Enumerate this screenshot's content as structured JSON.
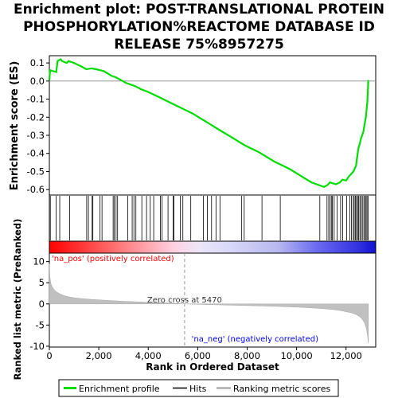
{
  "chart_data": {
    "type": "line",
    "title_lines": [
      "Enrichment plot: POST-TRANSLATIONAL PROTEIN",
      "PHOSPHORYLATION%REACTOME DATABASE ID",
      "RELEASE 75%8957275"
    ],
    "es_panel": {
      "ylabel": "Enrichment score (ES)",
      "ylim": [
        -0.63,
        0.14
      ],
      "yticks": [
        0.1,
        0.0,
        -0.1,
        -0.2,
        -0.3,
        -0.4,
        -0.5,
        -0.6
      ],
      "ytick_labels": [
        "0.1",
        "0.0",
        "-0.1",
        "-0.2",
        "-0.3",
        "-0.4",
        "-0.5",
        "-0.6"
      ],
      "xlim": [
        0,
        13200
      ],
      "series": [
        {
          "name": "Enrichment profile",
          "color": "#00dd00",
          "x": [
            0,
            30,
            280,
            330,
            450,
            520,
            700,
            780,
            1000,
            1300,
            1500,
            1700,
            1900,
            2050,
            2200,
            2500,
            2700,
            2900,
            3100,
            3300,
            3500,
            3700,
            4000,
            4300,
            4600,
            4900,
            5200,
            5500,
            5800,
            6100,
            6400,
            6700,
            7000,
            7300,
            7600,
            7900,
            8200,
            8500,
            8800,
            9100,
            9400,
            9700,
            10000,
            10300,
            10600,
            10900,
            11100,
            11250,
            11350,
            11450,
            11600,
            11750,
            11850,
            12000,
            12100,
            12200,
            12300,
            12400,
            12450,
            12500,
            12550,
            12600,
            12650,
            12700,
            12750,
            12800,
            12830,
            12860,
            12880,
            12900
          ],
          "y": [
            0.005,
            0.06,
            0.05,
            0.11,
            0.12,
            0.11,
            0.1,
            0.11,
            0.1,
            0.08,
            0.065,
            0.07,
            0.065,
            0.06,
            0.055,
            0.03,
            0.02,
            0.005,
            -0.01,
            -0.02,
            -0.03,
            -0.045,
            -0.06,
            -0.08,
            -0.1,
            -0.12,
            -0.14,
            -0.16,
            -0.18,
            -0.205,
            -0.23,
            -0.255,
            -0.28,
            -0.305,
            -0.33,
            -0.355,
            -0.375,
            -0.395,
            -0.42,
            -0.445,
            -0.465,
            -0.485,
            -0.51,
            -0.535,
            -0.56,
            -0.575,
            -0.585,
            -0.575,
            -0.56,
            -0.565,
            -0.57,
            -0.56,
            -0.545,
            -0.55,
            -0.53,
            -0.515,
            -0.5,
            -0.47,
            -0.42,
            -0.37,
            -0.35,
            -0.32,
            -0.3,
            -0.28,
            -0.24,
            -0.2,
            -0.16,
            -0.12,
            -0.06,
            0.005
          ]
        }
      ]
    },
    "hits": {
      "legend_label": "Hits",
      "positions": [
        40,
        270,
        420,
        820,
        1510,
        1580,
        1730,
        1760,
        2050,
        2130,
        2580,
        2620,
        2700,
        2760,
        3170,
        3350,
        3420,
        3500,
        3740,
        3930,
        4080,
        4220,
        4490,
        4560,
        4800,
        5010,
        5040,
        5300,
        5400,
        5720,
        6230,
        6390,
        6560,
        6740,
        6900,
        7780,
        7880,
        8600,
        9340,
        10940,
        11230,
        11300,
        11360,
        11420,
        11450,
        11520,
        11640,
        11780,
        11860,
        12020,
        12150,
        12220,
        12290,
        12330,
        12380,
        12420,
        12470,
        12510,
        12560,
        12610,
        12660,
        12720,
        12770,
        12810,
        12850,
        12890
      ]
    },
    "ranked_metric": {
      "ylabel": "Ranked list metric (PreRanked)",
      "ylim": [
        -10.2,
        12
      ],
      "yticks": [
        10,
        5,
        0,
        -5,
        -10
      ],
      "ytick_labels": [
        "10",
        "5",
        "0",
        "-5",
        "-10"
      ],
      "xlim": [
        0,
        13200
      ],
      "profile_x": [
        0,
        20,
        60,
        120,
        200,
        300,
        450,
        600,
        800,
        1000,
        1300,
        1600,
        2000,
        2500,
        3000,
        3500,
        4000,
        4500,
        5000,
        5470,
        6000,
        7000,
        8000,
        9000,
        10000,
        10500,
        11000,
        11500,
        11800,
        12000,
        12200,
        12400,
        12550,
        12650,
        12750,
        12820,
        12870,
        12900
      ],
      "profile_y": [
        9.5,
        6.5,
        4.8,
        4.0,
        3.3,
        2.8,
        2.3,
        1.95,
        1.65,
        1.45,
        1.25,
        1.1,
        0.95,
        0.78,
        0.62,
        0.5,
        0.38,
        0.27,
        0.15,
        0.0,
        -0.1,
        -0.25,
        -0.4,
        -0.55,
        -0.75,
        -0.9,
        -1.1,
        -1.35,
        -1.6,
        -1.85,
        -2.1,
        -2.5,
        -3.0,
        -3.6,
        -4.5,
        -5.8,
        -7.5,
        -9.3
      ],
      "zero_cross_x": 5470,
      "zero_cross_label": "Zero cross at 5470",
      "pos_label": "'na_pos' (positively correlated)",
      "neg_label": "'na_neg' (negatively correlated)"
    },
    "xaxis": {
      "xlabel": "Rank in Ordered Dataset",
      "xticks": [
        0,
        2000,
        4000,
        6000,
        8000,
        10000,
        12000
      ],
      "xtick_labels": [
        "0",
        "2,000",
        "4,000",
        "6,000",
        "8,000",
        "10,000",
        "12,000"
      ]
    },
    "legend": {
      "items": [
        {
          "label": "Enrichment profile",
          "color": "#00dd00"
        },
        {
          "label": "Hits",
          "color": "#000000"
        },
        {
          "label": "Ranking metric scores",
          "color": "#bbbbbb"
        }
      ]
    },
    "colors": {
      "pos_text": "#ff0000",
      "neg_text": "#0000ff",
      "metric_fill": "#c0c0c0"
    }
  }
}
